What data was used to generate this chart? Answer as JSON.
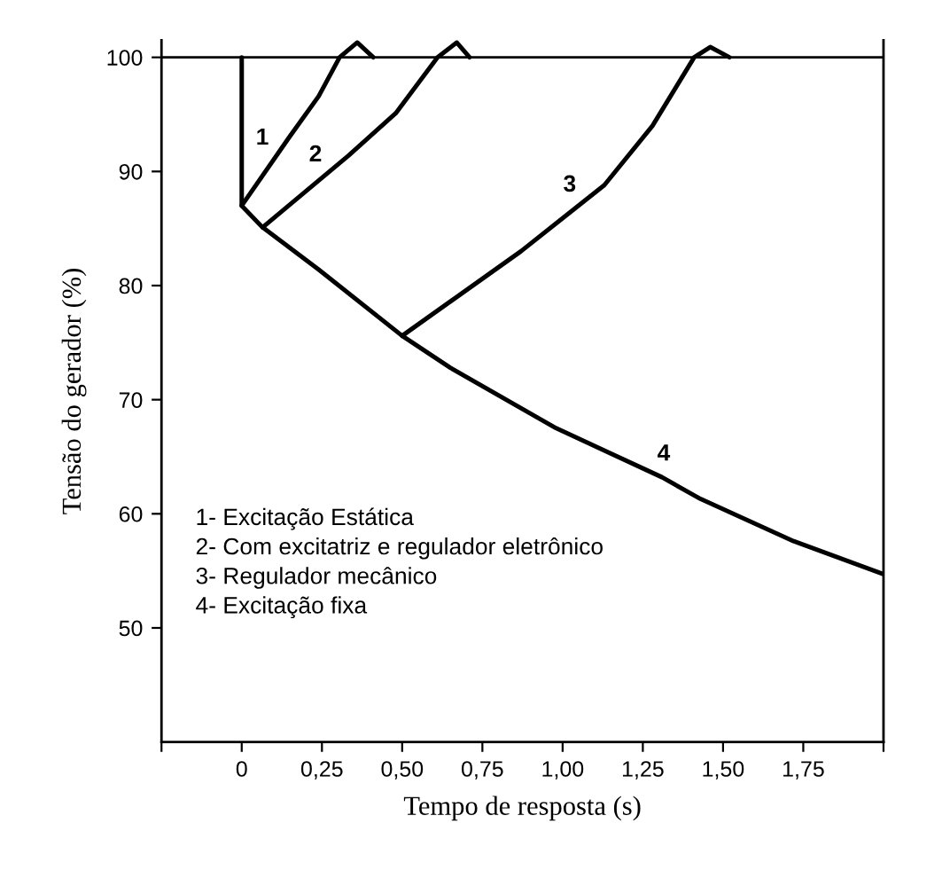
{
  "chart_data": {
    "type": "line",
    "xlabel": "Tempo de resposta (s)",
    "ylabel": "Tensão do gerador (%)",
    "xlim": [
      -0.25,
      2.0
    ],
    "ylim": [
      40,
      101.5
    ],
    "xticks": [
      {
        "value": -0.25,
        "label": null
      },
      0,
      {
        "value": 0.25,
        "label": "0,25"
      },
      {
        "value": 0.5,
        "label": "0,50"
      },
      {
        "value": 0.75,
        "label": "0,75"
      },
      {
        "value": 1.0,
        "label": "1,00"
      },
      {
        "value": 1.25,
        "label": "1,25"
      },
      {
        "value": 1.5,
        "label": "1,50"
      },
      {
        "value": 1.75,
        "label": "1,75"
      },
      {
        "value": 2.0,
        "label": null
      }
    ],
    "yticks": [
      50,
      60,
      70,
      80,
      90,
      100
    ],
    "ref_lines": [
      {
        "axis": "y",
        "value": 100,
        "color": "#000000",
        "line_style": "solid"
      }
    ],
    "series": [
      {
        "name": "1",
        "color": "#000000",
        "x": [
          0.0,
          0.148,
          0.24,
          0.305,
          0.36,
          0.41
        ],
        "values": [
          87.0,
          93.0,
          96.6,
          100.0,
          101.3,
          100.0
        ]
      },
      {
        "name": "2",
        "color": "#000000",
        "x": [
          0.065,
          0.333,
          0.48,
          0.61,
          0.67,
          0.71
        ],
        "values": [
          85.1,
          91.4,
          95.1,
          100.0,
          101.3,
          100.0
        ]
      },
      {
        "name": "3",
        "color": "#000000",
        "x": [
          0.5,
          0.87,
          1.13,
          1.28,
          1.41,
          1.46,
          1.52
        ],
        "values": [
          75.6,
          83.0,
          88.8,
          94.0,
          100.0,
          100.9,
          100.0
        ]
      },
      {
        "name": "4",
        "color": "#000000",
        "x": [
          0.0,
          0.0,
          0.065,
          0.24,
          0.5,
          0.65,
          0.98,
          1.31,
          1.43,
          1.72,
          2.0
        ],
        "values": [
          100.0,
          87.0,
          85.1,
          81.4,
          75.6,
          72.8,
          67.5,
          63.2,
          61.3,
          57.6,
          54.7
        ]
      }
    ],
    "annotations": [
      "1- Excitação Estática",
      "2- Com excitatriz e regulador eletrônico",
      "3- Regulador mecânico",
      "4- Excitação fixa"
    ],
    "grid": false,
    "legend": false,
    "marker": "none",
    "line_style": "solid"
  }
}
